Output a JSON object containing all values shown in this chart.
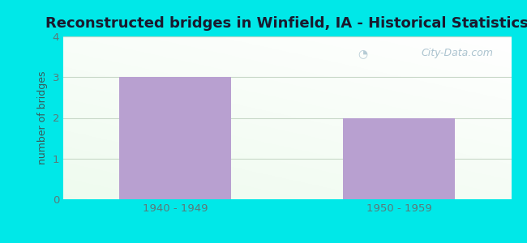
{
  "title": "Reconstructed bridges in Winfield, IA - Historical Statistics",
  "categories": [
    "1940 - 1949",
    "1950 - 1959"
  ],
  "values": [
    3,
    2
  ],
  "bar_color": "#b8a0d0",
  "ylim": [
    0,
    4
  ],
  "yticks": [
    0,
    1,
    2,
    3,
    4
  ],
  "ylabel": "number of bridges",
  "background_color": "#00e8e8",
  "plot_bg_color1": "#e8f5e8",
  "plot_bg_color2": "#f8fff8",
  "grid_color": "#c8d8c8",
  "title_fontsize": 13,
  "title_color": "#1a1a2e",
  "axis_label_color": "#3a5a5a",
  "tick_label_color": "#5a7a7a",
  "watermark": "City-Data.com",
  "bar_width": 0.5
}
